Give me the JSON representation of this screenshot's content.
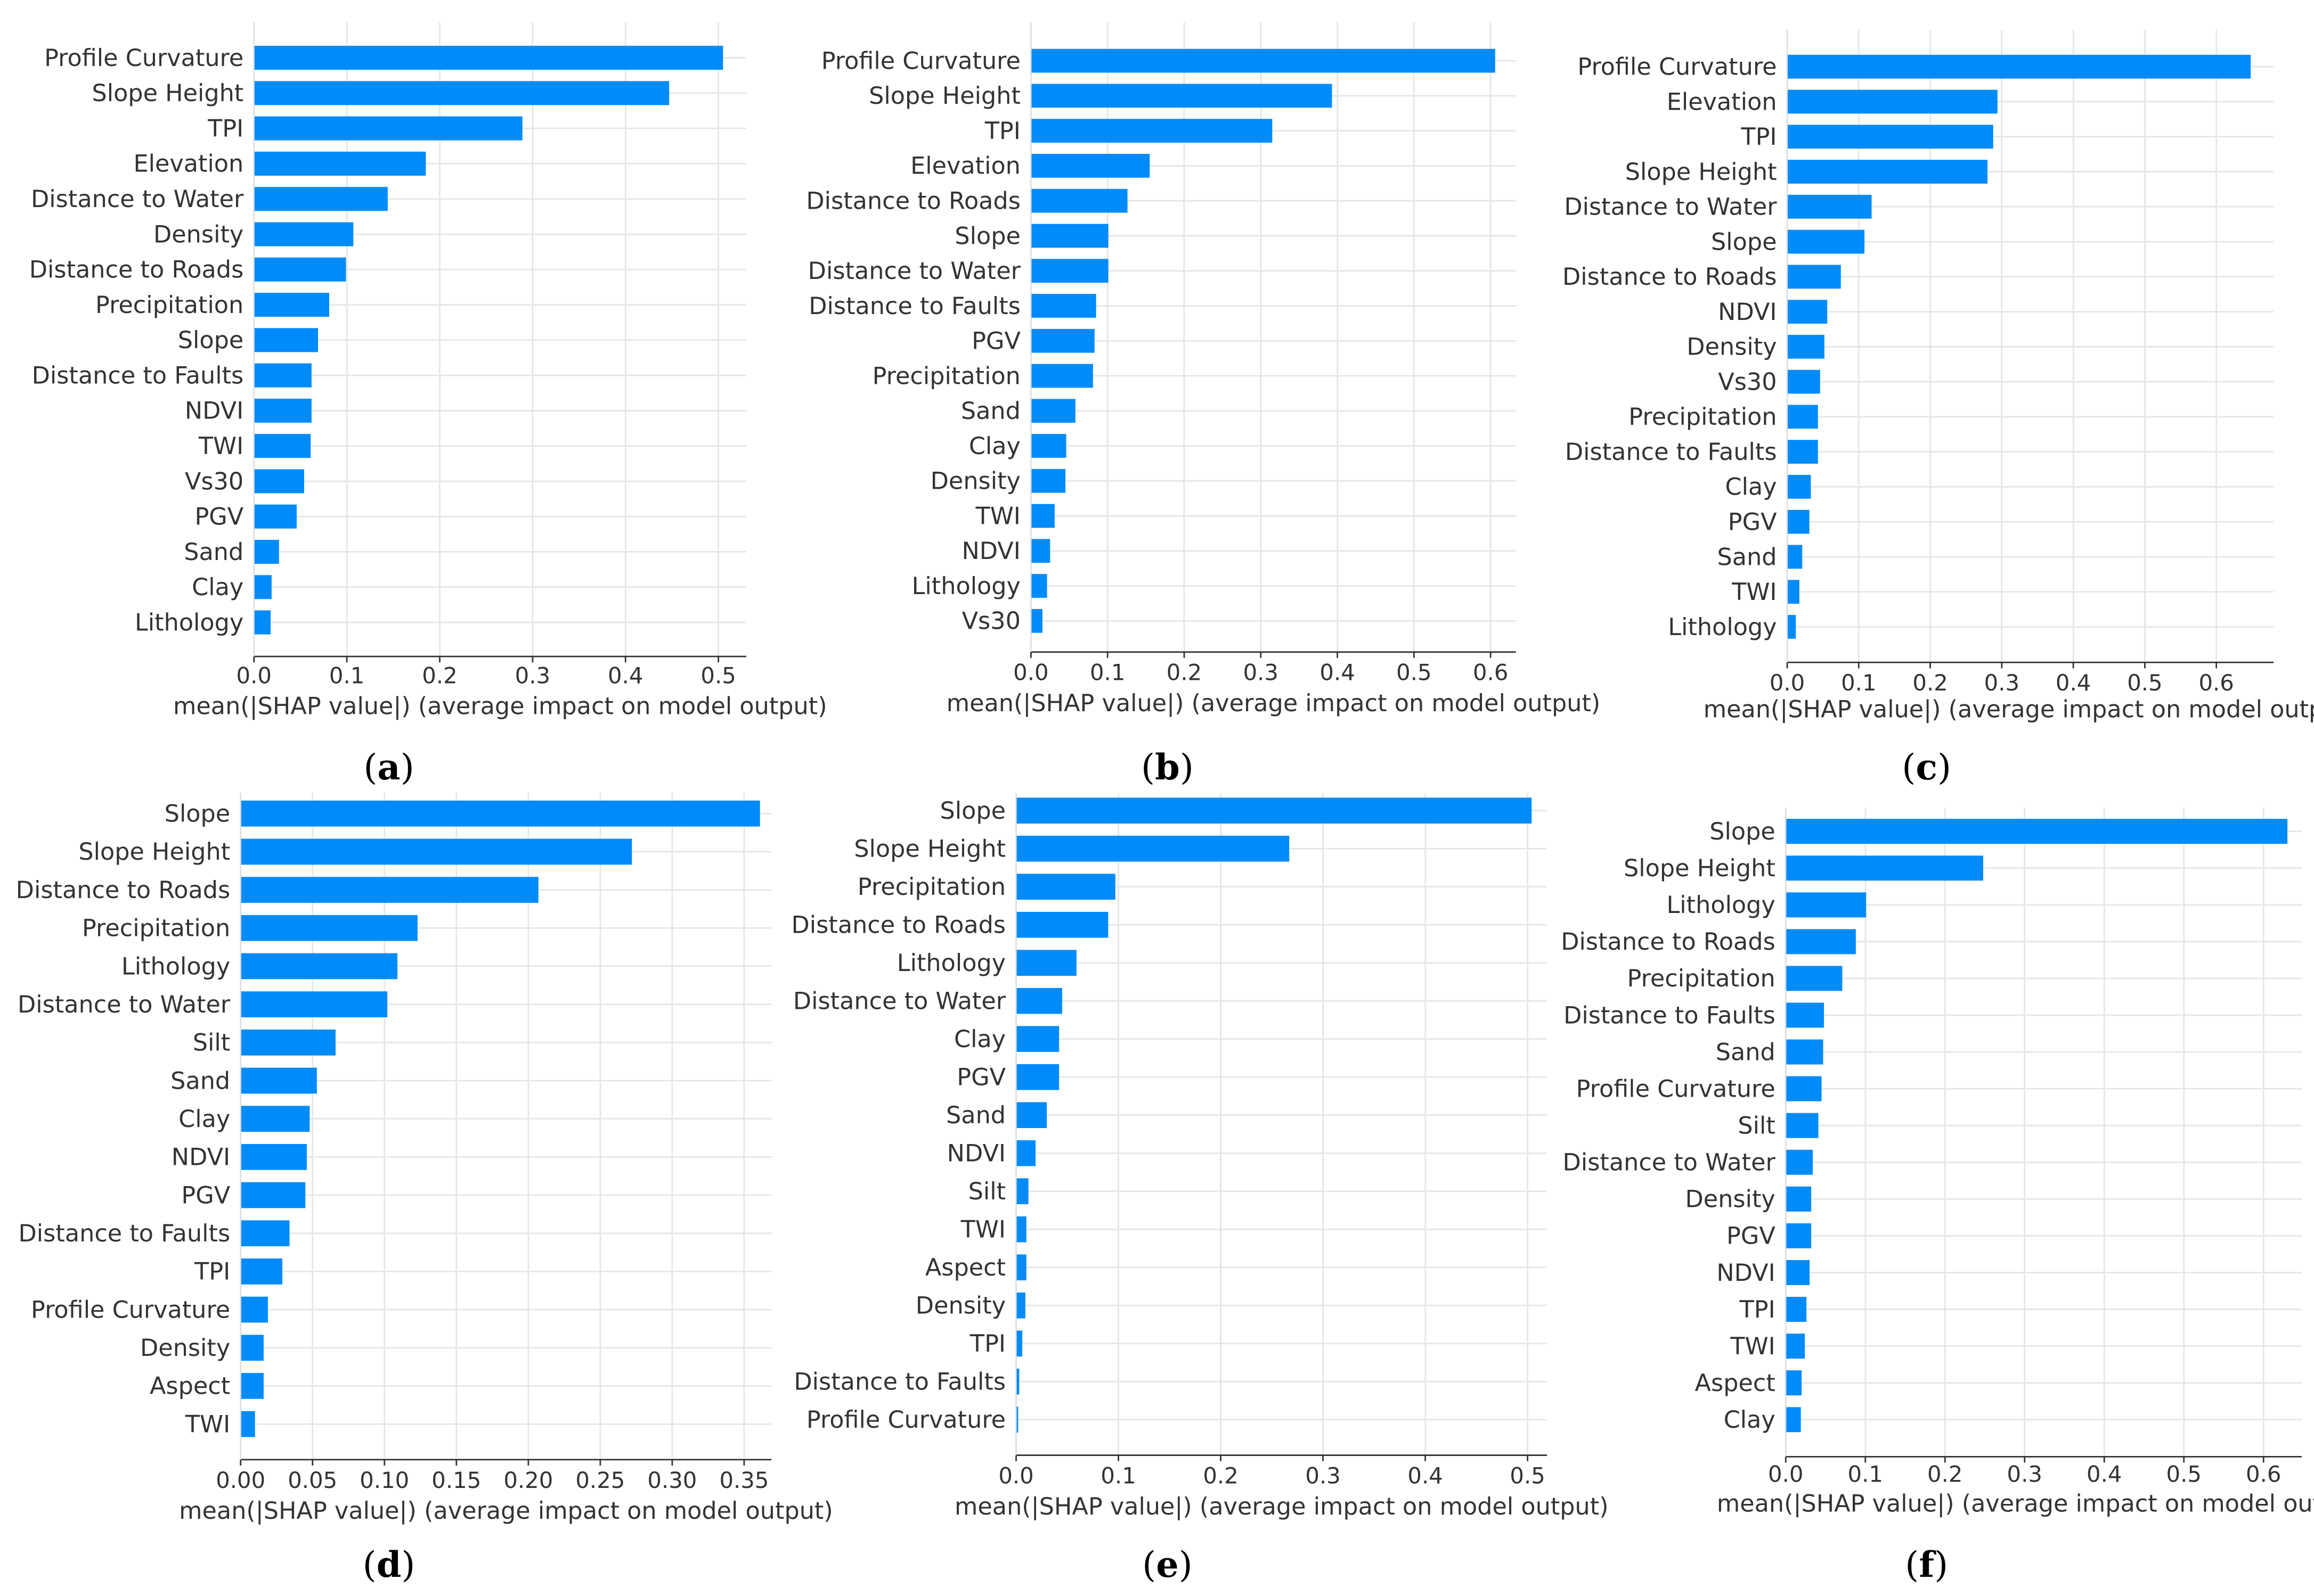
{
  "bar_color": "#008bfb",
  "chart_data": [
    {
      "type": "bar",
      "orientation": "horizontal",
      "panel": "a",
      "letter": "a",
      "xlabel": "mean(|SHAP value|) (average impact on model output)",
      "xlim": [
        0,
        0.53
      ],
      "ticks": [
        "0.0",
        "0.1",
        "0.2",
        "0.3",
        "0.4",
        "0.5"
      ],
      "tick_values": [
        0,
        0.1,
        0.2,
        0.3,
        0.4,
        0.5
      ],
      "categories": [
        "Profile Curvature",
        "Slope Height",
        "TPI",
        "Elevation",
        "Distance to Water",
        "Density",
        "Distance to Roads",
        "Precipitation",
        "Slope",
        "Distance to Faults",
        "NDVI",
        "TWI",
        "Vs30",
        "PGV",
        "Sand",
        "Clay",
        "Lithology"
      ],
      "values": [
        0.505,
        0.447,
        0.289,
        0.185,
        0.144,
        0.107,
        0.099,
        0.081,
        0.069,
        0.062,
        0.062,
        0.061,
        0.054,
        0.046,
        0.027,
        0.019,
        0.018
      ]
    },
    {
      "type": "bar",
      "orientation": "horizontal",
      "panel": "b",
      "letter": "b",
      "xlabel": "mean(|SHAP value|) (average impact on model output)",
      "xlim": [
        0,
        0.633
      ],
      "ticks": [
        "0.0",
        "0.1",
        "0.2",
        "0.3",
        "0.4",
        "0.5",
        "0.6"
      ],
      "tick_values": [
        0,
        0.1,
        0.2,
        0.3,
        0.4,
        0.5,
        0.6
      ],
      "categories": [
        "Profile Curvature",
        "Slope Height",
        "TPI",
        "Elevation",
        "Distance to Roads",
        "Slope",
        "Distance to Water",
        "Distance to Faults",
        "PGV",
        "Precipitation",
        "Sand",
        "Clay",
        "Density",
        "TWI",
        "NDVI",
        "Lithology",
        "Vs30"
      ],
      "values": [
        0.606,
        0.393,
        0.315,
        0.155,
        0.126,
        0.101,
        0.101,
        0.085,
        0.083,
        0.081,
        0.058,
        0.046,
        0.045,
        0.031,
        0.025,
        0.021,
        0.015
      ]
    },
    {
      "type": "bar",
      "orientation": "horizontal",
      "panel": "c",
      "letter": "c",
      "xlabel": "mean(|SHAP value|) (average impact on model output)",
      "xlim": [
        0,
        0.68
      ],
      "ticks": [
        "0.0",
        "0.1",
        "0.2",
        "0.3",
        "0.4",
        "0.5",
        "0.6"
      ],
      "tick_values": [
        0,
        0.1,
        0.2,
        0.3,
        0.4,
        0.5,
        0.6
      ],
      "categories": [
        "Profile Curvature",
        "Elevation",
        "TPI",
        "Slope Height",
        "Distance to Water",
        "Slope",
        "Distance to Roads",
        "NDVI",
        "Density",
        "Vs30",
        "Precipitation",
        "Distance to Faults",
        "Clay",
        "PGV",
        "Sand",
        "TWI",
        "Lithology"
      ],
      "values": [
        0.648,
        0.294,
        0.288,
        0.28,
        0.118,
        0.108,
        0.075,
        0.056,
        0.052,
        0.046,
        0.043,
        0.043,
        0.033,
        0.031,
        0.021,
        0.017,
        0.012
      ]
    },
    {
      "type": "bar",
      "orientation": "horizontal",
      "panel": "d",
      "letter": "d",
      "xlabel": "mean(|SHAP value|) (average impact on model output)",
      "xlim": [
        0,
        0.369
      ],
      "ticks": [
        "0.00",
        "0.05",
        "0.10",
        "0.15",
        "0.20",
        "0.25",
        "0.30",
        "0.35"
      ],
      "tick_values": [
        0,
        0.05,
        0.1,
        0.15,
        0.2,
        0.25,
        0.3,
        0.35
      ],
      "categories": [
        "Slope",
        "Slope Height",
        "Distance to Roads",
        "Precipitation",
        "Lithology",
        "Distance to Water",
        "Silt",
        "Sand",
        "Clay",
        "NDVI",
        "PGV",
        "Distance to Faults",
        "TPI",
        "Profile Curvature",
        "Density",
        "Aspect",
        "TWI"
      ],
      "values": [
        0.361,
        0.272,
        0.207,
        0.123,
        0.109,
        0.102,
        0.066,
        0.053,
        0.048,
        0.046,
        0.045,
        0.034,
        0.029,
        0.019,
        0.016,
        0.016,
        0.01
      ]
    },
    {
      "type": "bar",
      "orientation": "horizontal",
      "panel": "e",
      "letter": "e",
      "xlabel": "mean(|SHAP value|) (average impact on model output)",
      "xlim": [
        0,
        0.519
      ],
      "ticks": [
        "0.0",
        "0.1",
        "0.2",
        "0.3",
        "0.4",
        "0.5"
      ],
      "tick_values": [
        0,
        0.1,
        0.2,
        0.3,
        0.4,
        0.5
      ],
      "categories": [
        "Slope",
        "Slope Height",
        "Precipitation",
        "Distance to Roads",
        "Lithology",
        "Distance to Water",
        "Clay",
        "PGV",
        "Sand",
        "NDVI",
        "Silt",
        "TWI",
        "Aspect",
        "Density",
        "TPI",
        "Distance to Faults",
        "Profile Curvature"
      ],
      "values": [
        0.504,
        0.267,
        0.097,
        0.09,
        0.059,
        0.045,
        0.042,
        0.042,
        0.03,
        0.019,
        0.012,
        0.01,
        0.01,
        0.009,
        0.006,
        0.003,
        0.002
      ]
    },
    {
      "type": "bar",
      "orientation": "horizontal",
      "panel": "f",
      "letter": "f",
      "xlabel": "mean(|SHAP value|) (average impact on model output)",
      "xlim": [
        0,
        0.648
      ],
      "ticks": [
        "0.0",
        "0.1",
        "0.2",
        "0.3",
        "0.4",
        "0.5",
        "0.6"
      ],
      "tick_values": [
        0,
        0.1,
        0.2,
        0.3,
        0.4,
        0.5,
        0.6
      ],
      "categories": [
        "Slope",
        "Slope Height",
        "Lithology",
        "Distance to Roads",
        "Precipitation",
        "Distance to Faults",
        "Sand",
        "Profile Curvature",
        "Silt",
        "Distance to Water",
        "Density",
        "PGV",
        "NDVI",
        "TPI",
        "TWI",
        "Aspect",
        "Clay"
      ],
      "values": [
        0.63,
        0.248,
        0.101,
        0.088,
        0.071,
        0.048,
        0.047,
        0.045,
        0.041,
        0.034,
        0.032,
        0.032,
        0.03,
        0.026,
        0.024,
        0.02,
        0.019
      ]
    }
  ]
}
